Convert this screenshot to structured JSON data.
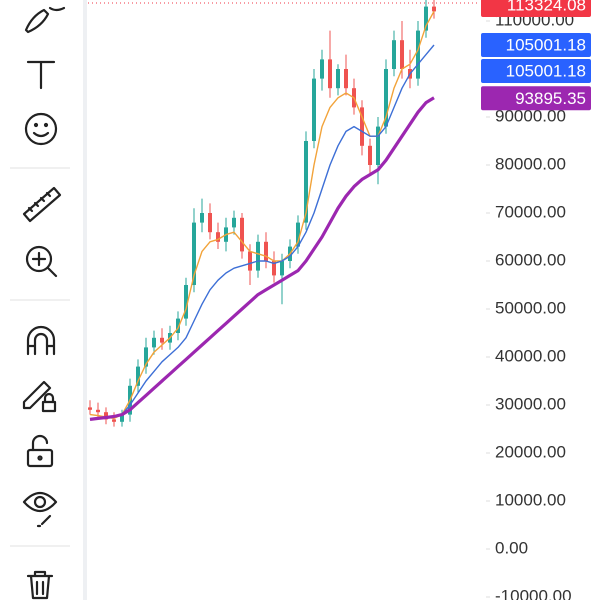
{
  "chart_data": {
    "type": "candlestick",
    "up_color": "#26a69a",
    "down_color": "#ef5350",
    "open": [
      29500,
      29000,
      28500,
      27000,
      26500,
      28000,
      34000,
      38000,
      42000,
      44000,
      43000,
      45000,
      48000,
      55000,
      68000,
      70000,
      66000,
      64000,
      67000,
      69000,
      62000,
      58000,
      64000,
      60000,
      57000,
      60000,
      63000,
      68000,
      85000,
      98000,
      102000,
      96000,
      100000,
      96000,
      92000,
      84000,
      80000,
      88000,
      100000,
      106000,
      100000,
      98000,
      108000,
      113000
    ],
    "high": [
      31000,
      30500,
      29500,
      28500,
      29000,
      35500,
      39500,
      44000,
      45500,
      46000,
      46500,
      49500,
      56500,
      71000,
      73000,
      72000,
      68000,
      69000,
      70500,
      70000,
      63500,
      65500,
      66000,
      62000,
      61500,
      64500,
      69500,
      87000,
      100000,
      104000,
      108000,
      101000,
      103000,
      98000,
      93500,
      85500,
      90000,
      102000,
      108000,
      110000,
      104000,
      110000,
      115000,
      115000
    ],
    "low": [
      28000,
      27500,
      26000,
      25500,
      25500,
      26500,
      32500,
      36500,
      40500,
      41500,
      41500,
      43500,
      46500,
      53500,
      66000,
      64500,
      62500,
      62000,
      65500,
      60500,
      55000,
      56500,
      58500,
      55500,
      51000,
      58500,
      61500,
      66500,
      83500,
      95500,
      94000,
      94500,
      94500,
      90500,
      82000,
      78000,
      76000,
      86500,
      98500,
      98000,
      96000,
      96500,
      106500,
      110500
    ],
    "close": [
      29000,
      28500,
      27000,
      26500,
      28000,
      34000,
      38000,
      42000,
      44000,
      43000,
      45000,
      48000,
      55000,
      68000,
      70000,
      66000,
      64000,
      67000,
      69000,
      62000,
      58000,
      64000,
      60000,
      57000,
      60000,
      63000,
      68000,
      85000,
      98000,
      102000,
      96000,
      100000,
      96000,
      92000,
      84000,
      80000,
      88000,
      100000,
      106000,
      100000,
      98000,
      108000,
      113000,
      112000
    ],
    "series": [
      {
        "color": "#f2a33a",
        "width": 1.4,
        "values": [
          28000,
          27800,
          27500,
          27200,
          28000,
          31000,
          35000,
          38500,
          41000,
          42500,
          44000,
          46000,
          50000,
          57000,
          62000,
          64000,
          64500,
          65500,
          66000,
          64000,
          62000,
          61500,
          61000,
          60000,
          60000,
          61500,
          64000,
          70000,
          80000,
          88000,
          92000,
          94000,
          95000,
          94000,
          90000,
          86000,
          86000,
          90000,
          96000,
          100000,
          101000,
          104000,
          109000,
          112000
        ]
      },
      {
        "color": "#3d6fd6",
        "width": 1.4,
        "values": [
          27000,
          27300,
          27500,
          27500,
          28000,
          30000,
          32500,
          35000,
          37000,
          39000,
          40500,
          42000,
          44000,
          47500,
          51000,
          54000,
          56000,
          57500,
          58500,
          59000,
          59500,
          60000,
          60000,
          59500,
          60000,
          61000,
          63000,
          66000,
          70000,
          75000,
          80000,
          84000,
          87000,
          88000,
          87000,
          86000,
          86000,
          88000,
          92000,
          96000,
          99000,
          101000,
          103000,
          105000
        ]
      },
      {
        "color": "#9c27b0",
        "width": 3.2,
        "values": [
          27000,
          27200,
          27400,
          27600,
          28000,
          29000,
          30500,
          32000,
          33500,
          35000,
          36500,
          38000,
          39500,
          41000,
          42500,
          44000,
          45500,
          47000,
          48500,
          50000,
          51500,
          53000,
          54000,
          55000,
          56000,
          57000,
          58000,
          60000,
          62500,
          65000,
          68000,
          71000,
          73500,
          75500,
          77000,
          78000,
          79000,
          81000,
          83500,
          86000,
          88500,
          91000,
          93000,
          94000
        ]
      }
    ],
    "price_badges": [
      {
        "value": 113324.08,
        "label": "113324.08",
        "color": "#f23645"
      },
      {
        "value": 105001.18,
        "label": "105001.18",
        "color": "#2962ff"
      },
      {
        "value": 105001.18,
        "label": "105001.18",
        "color": "#2962ff"
      },
      {
        "value": 93895.35,
        "label": "93895.35",
        "color": "#9c27b0"
      }
    ],
    "ylim": [
      -10000,
      110000
    ],
    "yticks": [
      {
        "value": 110000,
        "label": "110000.00"
      },
      {
        "value": 100000,
        "label": "100000.00"
      },
      {
        "value": 90000,
        "label": "90000.00"
      },
      {
        "value": 80000,
        "label": "80000.00"
      },
      {
        "value": 70000,
        "label": "70000.00"
      },
      {
        "value": 60000,
        "label": "60000.00"
      },
      {
        "value": 50000,
        "label": "50000.00"
      },
      {
        "value": 40000,
        "label": "40000.00"
      },
      {
        "value": 30000,
        "label": "30000.00"
      },
      {
        "value": 20000,
        "label": "20000.00"
      },
      {
        "value": 10000,
        "label": "10000.00"
      },
      {
        "value": 0,
        "label": "0.00"
      },
      {
        "value": -10000,
        "label": "-10000.00"
      }
    ]
  }
}
